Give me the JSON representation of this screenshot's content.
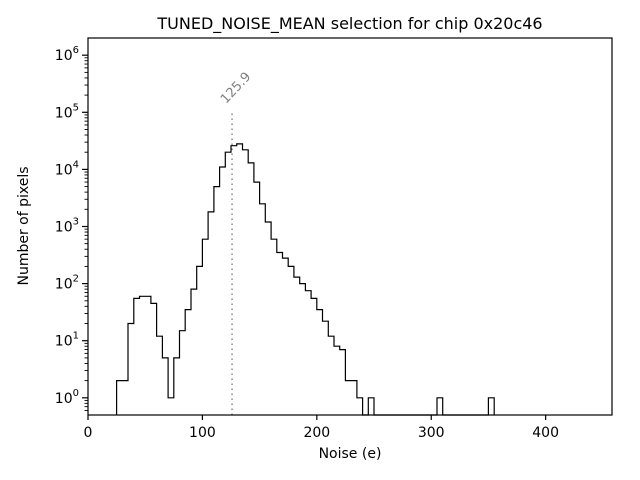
{
  "chart_data": {
    "type": "step-histogram",
    "title": "TUNED_NOISE_MEAN selection for chip 0x20c46",
    "xlabel": "Noise (e)",
    "ylabel": "Number of pixels",
    "x_scale": "linear",
    "y_scale": "log",
    "xlim": [
      0,
      458
    ],
    "ylim": [
      0.5,
      2000000
    ],
    "xticks": [
      0,
      100,
      200,
      300,
      400
    ],
    "ytick_exponents": [
      0,
      1,
      2,
      3,
      4,
      5,
      6
    ],
    "bin_start": 25,
    "bin_width": 5,
    "values": [
      2,
      2,
      20,
      55,
      60,
      60,
      45,
      12,
      5,
      1,
      5,
      15,
      35,
      80,
      200,
      600,
      1800,
      5000,
      11000,
      20000,
      26000,
      28000,
      22000,
      13000,
      6000,
      2500,
      1200,
      600,
      350,
      280,
      200,
      130,
      100,
      75,
      55,
      35,
      22,
      12,
      8,
      7,
      2,
      2,
      1,
      0,
      1,
      0,
      0,
      0,
      0,
      0,
      0,
      0,
      0,
      0,
      0,
      0,
      1,
      0,
      0,
      0,
      0,
      0,
      0,
      0,
      0,
      1
    ],
    "vline": {
      "x": 125.9,
      "label": "125.9",
      "top_value": 100000
    },
    "colors": {
      "hist_line": "#000000",
      "axes": "#000000",
      "vline": "#808080",
      "annotation": "#808080",
      "background": "#ffffff"
    },
    "legend": null,
    "grid": false
  }
}
